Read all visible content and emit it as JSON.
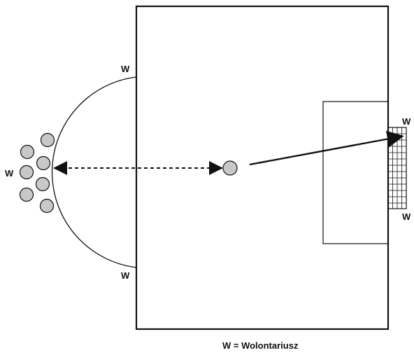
{
  "labels": {
    "volunteer_top": "W",
    "volunteer_bottom": "W",
    "volunteer_group": "W",
    "volunteer_goal_top": "W",
    "volunteer_goal_bottom": "W"
  },
  "legend": "W = Wolontariusz",
  "colors": {
    "line": "#111111",
    "player_fill": "#c8c8c8",
    "background": "#ffffff"
  },
  "icons": {
    "player": "circle",
    "goal": "net-grid",
    "pass": "dashed-double-arrow",
    "shot": "solid-arrow"
  }
}
